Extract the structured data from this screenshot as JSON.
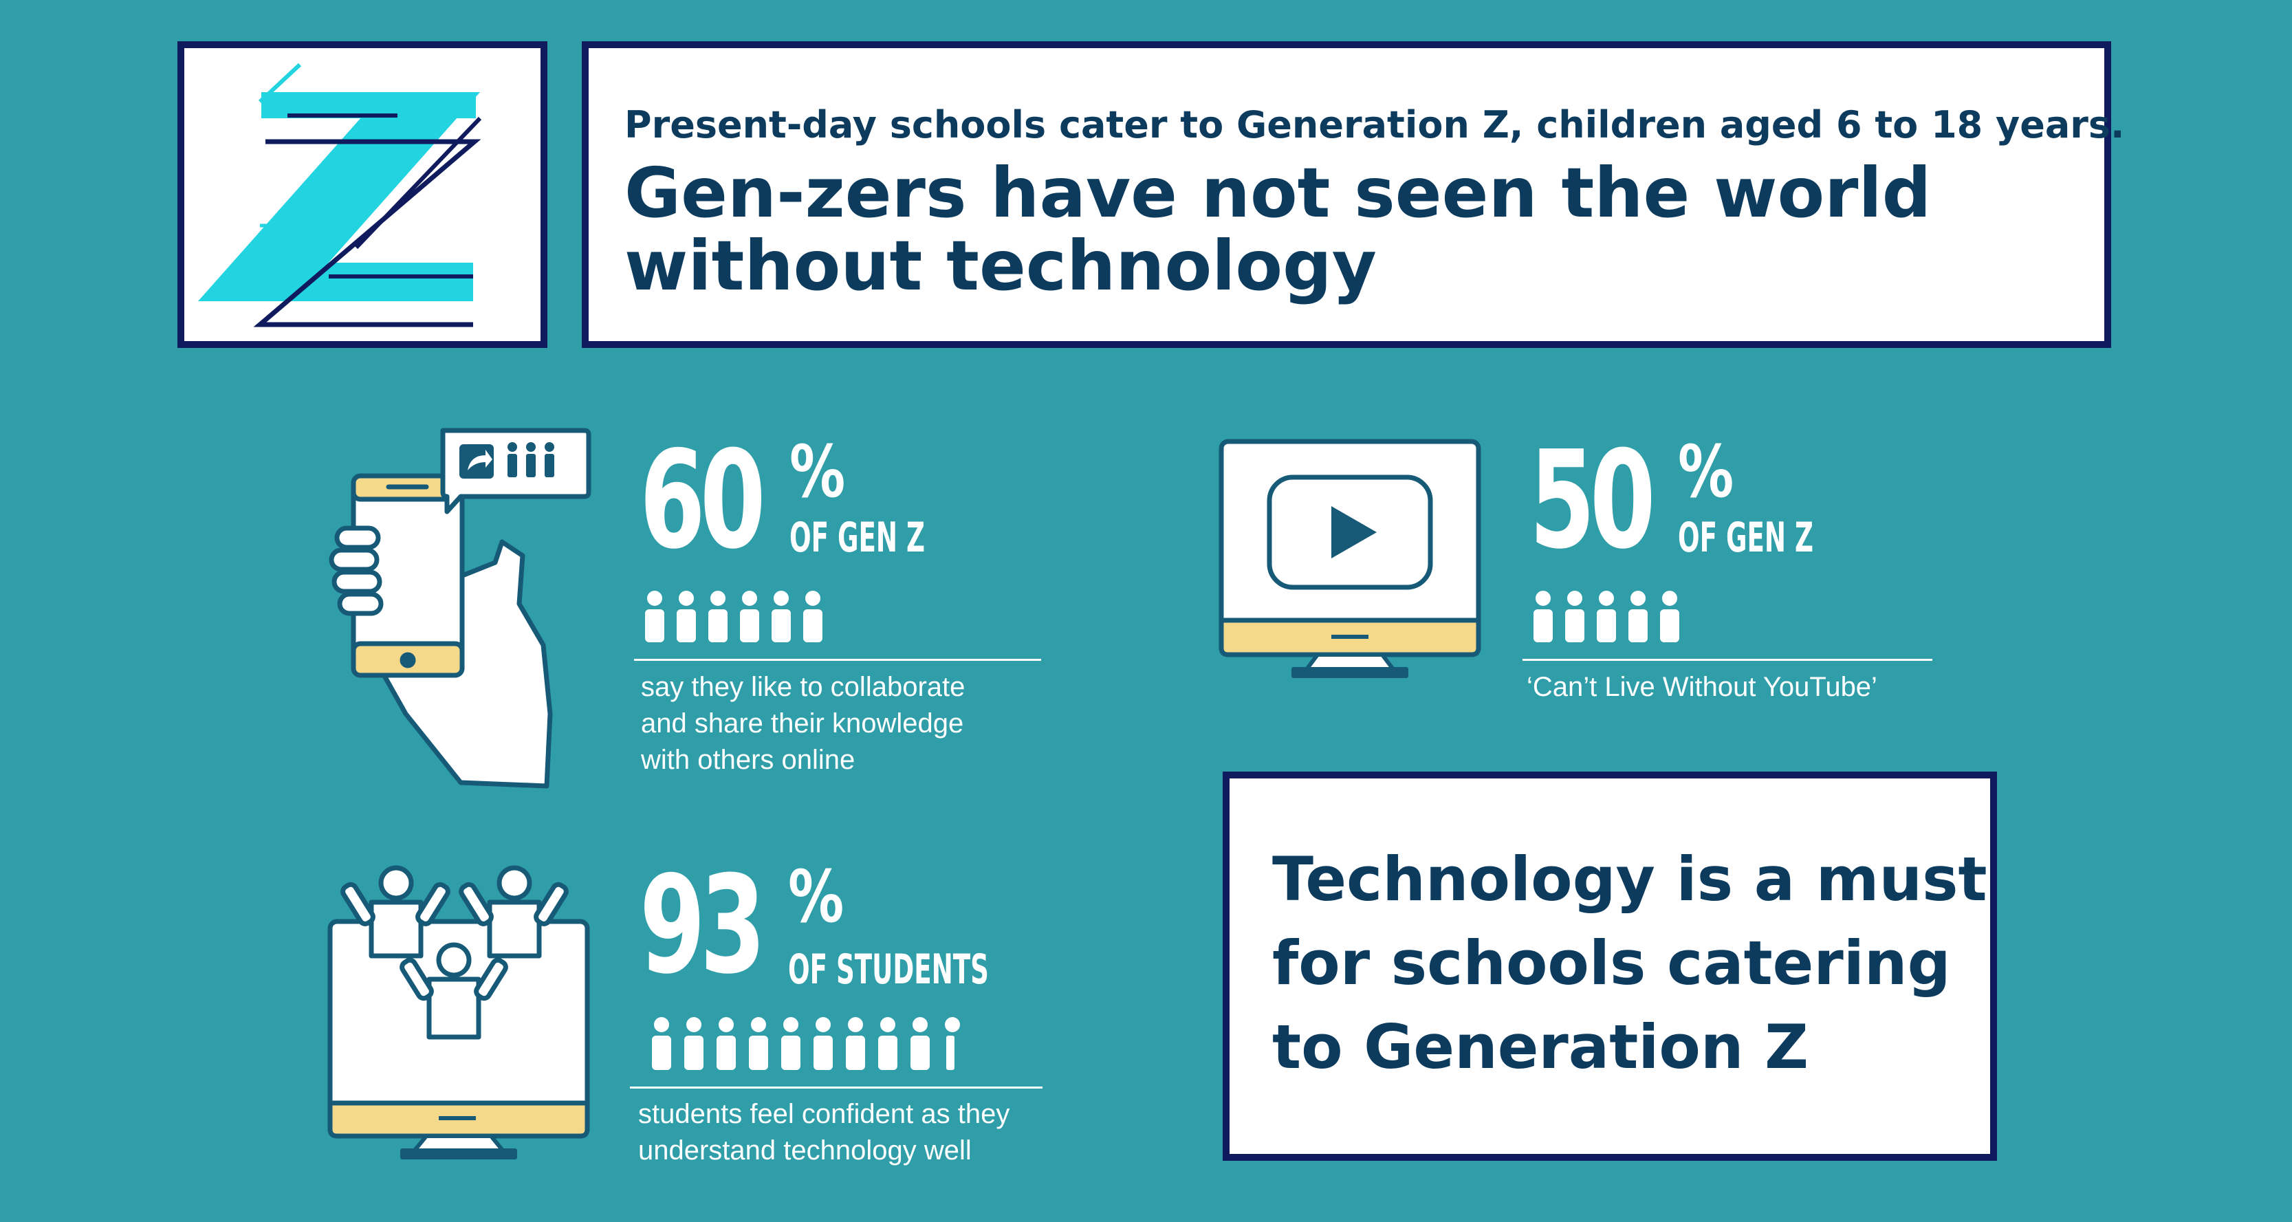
{
  "header": {
    "intro": "Present-day schools cater to Generation Z, children aged 6 to 18 years.",
    "headline": "Gen-zers have not seen the world without technology"
  },
  "stats": [
    {
      "number": "60",
      "percent_sign": "%",
      "group": "OF GEN Z",
      "description_lines": [
        "say they like to collaborate",
        "and share their knowledge",
        "with others online"
      ],
      "people_icons": 6,
      "icon": "phone-share-icon"
    },
    {
      "number": "50",
      "percent_sign": "%",
      "group": "OF GEN Z",
      "description_lines": [
        "‘Can’t Live Without YouTube’"
      ],
      "people_icons": 5,
      "icon": "monitor-play-icon"
    },
    {
      "number": "93",
      "percent_sign": "%",
      "group": "OF STUDENTS",
      "description_lines": [
        "students feel confident as they",
        "understand technology well"
      ],
      "people_icons": 10,
      "icon": "monitor-students-icon"
    }
  ],
  "callout": {
    "text": "Technology is a must for schools catering to Generation Z"
  },
  "colors": {
    "background": "#2f9ea8",
    "navy": "#0f1b5c",
    "text_dark": "#0d3b5e",
    "cyan": "#22d3e0",
    "sand": "#f5d98b",
    "icon_stroke": "#175a78"
  }
}
